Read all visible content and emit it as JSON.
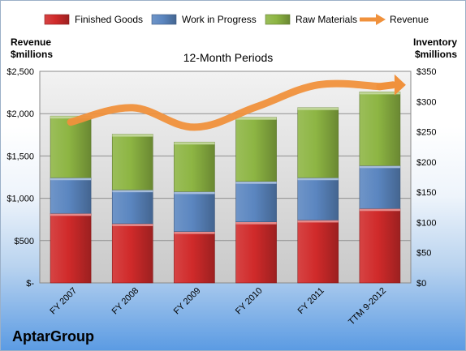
{
  "chart_data": {
    "type": "bar",
    "stacked": true,
    "title": "12-Month Periods",
    "company": "AptarGroup",
    "left_axis_label": [
      "Revenue",
      "$millions"
    ],
    "right_axis_label": [
      "Inventory",
      "$millions"
    ],
    "categories": [
      "FY 2007",
      "FY 2008",
      "FY 2009",
      "FY 2010",
      "FY 2011",
      "TTM 9-2012"
    ],
    "left_axis": {
      "min": 0,
      "max": 2500,
      "step": 500,
      "ticks": [
        "$-",
        "$500",
        "$1,000",
        "$1,500",
        "$2,000",
        "$2,500"
      ]
    },
    "right_axis": {
      "min": 0,
      "max": 350,
      "step": 50,
      "ticks": [
        "$0",
        "$50",
        "$100",
        "$150",
        "$200",
        "$250",
        "$300",
        "$350"
      ]
    },
    "grid": true,
    "legend_position": "top",
    "series": [
      {
        "name": "Finished Goods",
        "color": "#d02a2a",
        "axis": "right",
        "values": [
          115,
          98,
          85,
          101,
          104,
          123
        ]
      },
      {
        "name": "Work in Progress",
        "color": "#5b86c0",
        "axis": "right",
        "values": [
          59,
          56,
          66,
          67,
          70,
          71
        ]
      },
      {
        "name": "Raw Materials",
        "color": "#8db543",
        "axis": "right",
        "values": [
          102,
          92,
          82,
          106,
          116,
          122
        ]
      },
      {
        "name": "Revenue",
        "color": "#f0913c",
        "axis": "left",
        "type": "line",
        "values": [
          1900,
          2070,
          1840,
          2080,
          2340,
          2320
        ]
      }
    ]
  }
}
